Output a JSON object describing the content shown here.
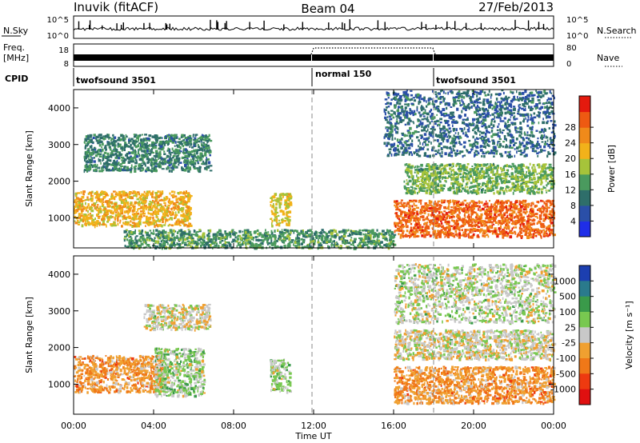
{
  "header": {
    "station": "Inuvik (fitACF)",
    "beam": "Beam 04",
    "date": "27/Feb/2013"
  },
  "panels": {
    "nsky": {
      "left_label": "N.Sky",
      "left_top": "10^5",
      "left_bottom": "10^0",
      "right_top": "10^5",
      "right_bottom": "10^0",
      "right_title": "N.Search"
    },
    "freq": {
      "left_label_1": "Freq.",
      "left_label_2": "[MHz]",
      "left_top": "18",
      "left_bottom": "8",
      "right_top": "80",
      "right_bottom": "0",
      "right_title": "Nave"
    },
    "cpid": {
      "left_label": "CPID",
      "segments": [
        {
          "label": "twofsound 3501",
          "start_hour": 0,
          "end_hour": 12
        },
        {
          "label": "normal 150",
          "start_hour": 12,
          "end_hour": 18
        },
        {
          "label": "twofsound 3501",
          "start_hour": 18,
          "end_hour": 24
        }
      ]
    }
  },
  "colorbars": {
    "power": {
      "title": "Power [dB]",
      "ticks": [
        "4",
        "8",
        "12",
        "16",
        "20",
        "24",
        "28"
      ],
      "colors": [
        "#1f2ee8",
        "#2a4fa8",
        "#2e6e6a",
        "#4a9a5e",
        "#a6c33a",
        "#f2b21a",
        "#f08a1a",
        "#ee5a12",
        "#e41a0e"
      ]
    },
    "velocity": {
      "title": "Velocity [m s⁻¹]",
      "ticks": [
        "1000",
        "500",
        "100",
        "25",
        "-25",
        "-100",
        "-500",
        "-1000"
      ],
      "colors": [
        "#1c3fb0",
        "#2a7a8c",
        "#3a9a4a",
        "#78c850",
        "#c8c8c8",
        "#f0a030",
        "#f07818",
        "#ee3a10",
        "#e01010"
      ]
    }
  },
  "chart_data": [
    {
      "type": "heatmap",
      "name": "power",
      "ylabel": "Slant Range [km]",
      "xlabel": "Time UT",
      "x_ticks": [
        "00:00",
        "04:00",
        "08:00",
        "12:00",
        "16:00",
        "20:00",
        "00:00"
      ],
      "y_ticks": [
        "1000",
        "2000",
        "3000",
        "4000"
      ],
      "xlim": [
        0,
        24
      ],
      "ylim": [
        180,
        4500
      ],
      "colorbar": "Power [dB]",
      "features": [
        {
          "desc": "band",
          "t0": 0.0,
          "t1": 5.8,
          "r0": 800,
          "r1": 1750,
          "value_db": 20
        },
        {
          "desc": "patches",
          "t0": 0.5,
          "t1": 6.8,
          "r0": 2300,
          "r1": 3300,
          "value_db": 10
        },
        {
          "desc": "patch",
          "t0": 9.8,
          "t1": 10.8,
          "r0": 800,
          "r1": 1700,
          "value_db": 18
        },
        {
          "desc": "near-range",
          "t0": 2.5,
          "t1": 16.0,
          "r0": 200,
          "r1": 700,
          "value_db": 12
        },
        {
          "desc": "band",
          "t0": 16.0,
          "t1": 24.0,
          "r0": 500,
          "r1": 1500,
          "value_db": 26
        },
        {
          "desc": "band",
          "t0": 16.5,
          "t1": 24.0,
          "r0": 1700,
          "r1": 2500,
          "value_db": 14
        },
        {
          "desc": "patches",
          "t0": 15.5,
          "t1": 24.0,
          "r0": 2700,
          "r1": 4500,
          "value_db": 8
        }
      ]
    },
    {
      "type": "heatmap",
      "name": "velocity",
      "ylabel": "Slant Range [km]",
      "xlabel": "Time UT",
      "x_ticks": [
        "00:00",
        "04:00",
        "08:00",
        "12:00",
        "16:00",
        "20:00",
        "00:00"
      ],
      "y_ticks": [
        "1000",
        "2000",
        "3000",
        "4000"
      ],
      "xlim": [
        0,
        24
      ],
      "ylim": [
        180,
        4500
      ],
      "colorbar": "Velocity [m s⁻¹]",
      "features": [
        {
          "desc": "band",
          "t0": 0.0,
          "t1": 4.5,
          "r0": 800,
          "r1": 1800,
          "value_ms": -300
        },
        {
          "desc": "band",
          "t0": 4.0,
          "t1": 6.5,
          "r0": 700,
          "r1": 2000,
          "value_ms": 150
        },
        {
          "desc": "patches",
          "t0": 3.5,
          "t1": 6.8,
          "r0": 2500,
          "r1": 3200,
          "value_ms": 0
        },
        {
          "desc": "patch",
          "t0": 9.8,
          "t1": 10.8,
          "r0": 800,
          "r1": 1700,
          "value_ms": 150
        },
        {
          "desc": "band",
          "t0": 16.0,
          "t1": 24.0,
          "r0": 500,
          "r1": 1500,
          "value_ms": -300
        },
        {
          "desc": "band",
          "t0": 16.0,
          "t1": 24.0,
          "r0": 1700,
          "r1": 2500,
          "value_ms": 0
        },
        {
          "desc": "patches",
          "t0": 16.0,
          "t1": 24.0,
          "r0": 2700,
          "r1": 4300,
          "value_ms": 60
        }
      ]
    }
  ]
}
